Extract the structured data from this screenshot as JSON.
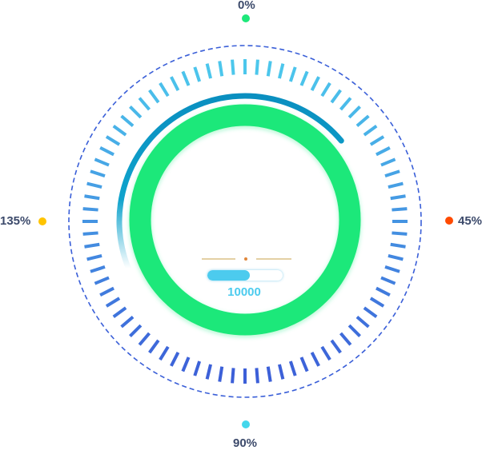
{
  "gauge": {
    "colors": {
      "ring": "#1de87a",
      "arc": "#0e9ec9",
      "ticks_top": "#4cc7ec",
      "ticks_bottom": "#3c5fd8",
      "dashed_ring": "#3a5fd8"
    },
    "arc_progress": 0.45
  },
  "markers": [
    {
      "label": "0%",
      "color": "#1de87a"
    },
    {
      "label": "45%",
      "color": "#ff4a00"
    },
    {
      "label": "90%",
      "color": "#44d7ec"
    },
    {
      "label": "135%",
      "color": "#ffc400"
    }
  ],
  "center": {
    "value": "10000",
    "progress": 0.56,
    "divider_color": "#c9a24a",
    "divider_dot_color": "#e0863b"
  }
}
